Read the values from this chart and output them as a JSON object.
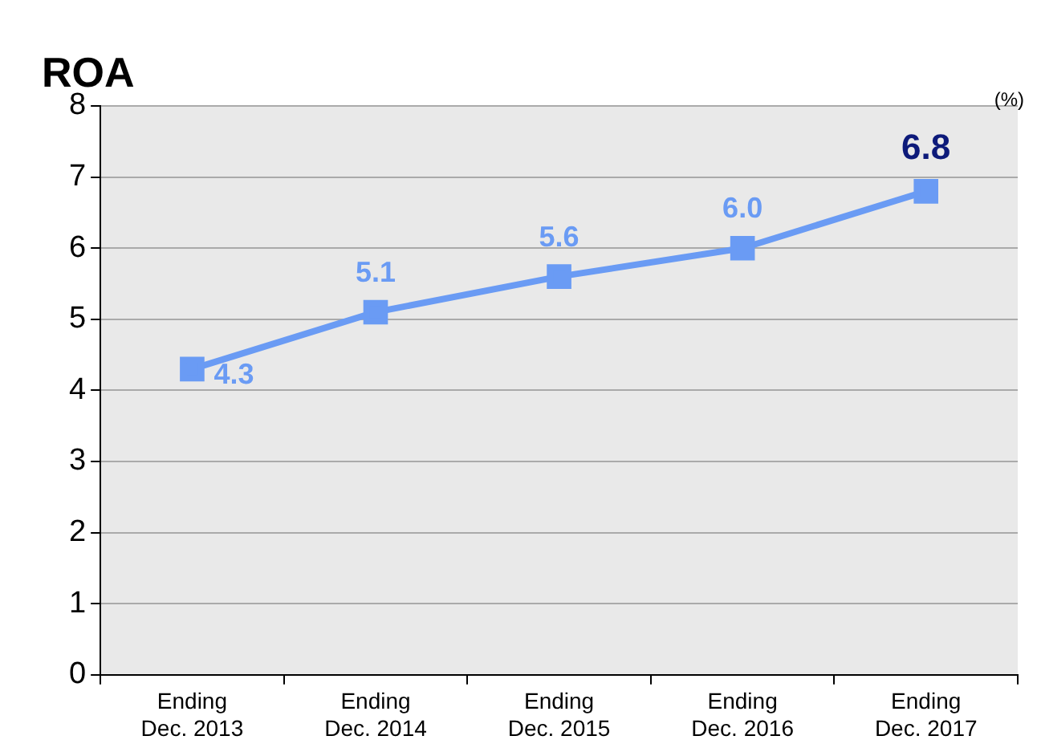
{
  "chart_data": {
    "type": "line",
    "title": "ROA",
    "annotations": [
      "(%)"
    ],
    "categories": [
      "Ending\nDec. 2013",
      "Ending\nDec. 2014",
      "Ending\nDec. 2015",
      "Ending\nDec. 2016",
      "Ending\nDec. 2017"
    ],
    "series": [
      {
        "color": "#6a9bf4",
        "values": [
          4.3,
          5.1,
          5.6,
          6.0,
          6.8
        ]
      }
    ],
    "value_labels": [
      "4.3",
      "5.1",
      "5.6",
      "6.0",
      "6.8"
    ],
    "ylim": [
      0,
      8
    ],
    "yticks": [
      0,
      1,
      2,
      3,
      4,
      5,
      6,
      7,
      8
    ],
    "grid": "y",
    "marker": "square",
    "line_style": "solid",
    "legend": false
  }
}
